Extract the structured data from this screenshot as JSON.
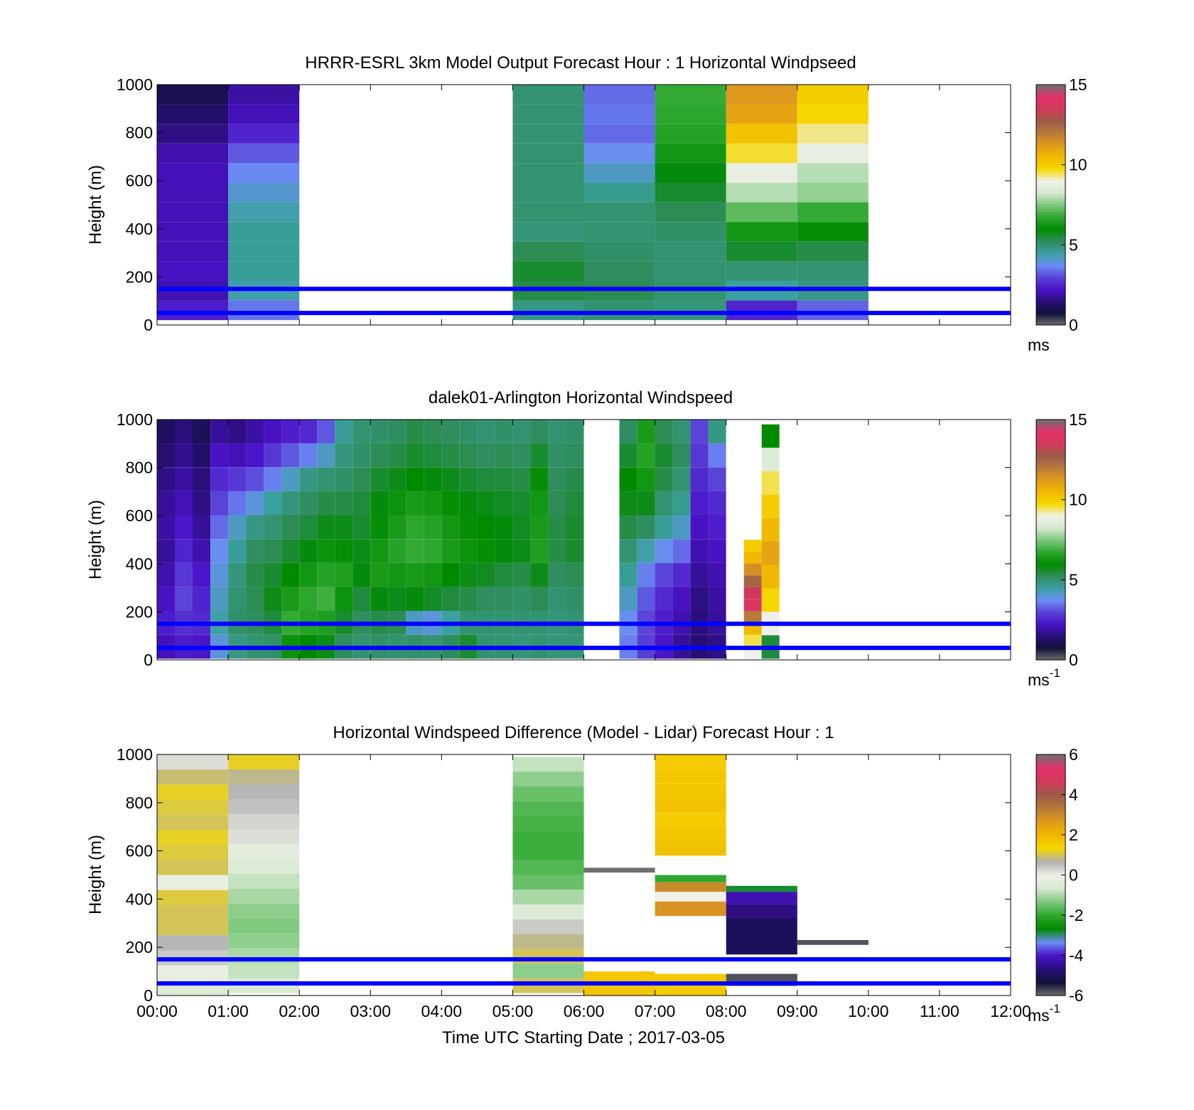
{
  "xaxis": {
    "label": "Time UTC  Starting Date ; 2017-03-05",
    "ticks": [
      "00:00",
      "01:00",
      "02:00",
      "03:00",
      "04:00",
      "05:00",
      "06:00",
      "07:00",
      "08:00",
      "09:00",
      "10:00",
      "11:00",
      "12:00"
    ]
  },
  "colors": {
    "overlay_lines": "#0000ff",
    "speed_scale": [
      "#6f6f6f",
      "#10103a",
      "#2a0f7a",
      "#4a12c8",
      "#5a44d8",
      "#6b8ef5",
      "#3aa0a0",
      "#2f8c5a",
      "#008a00",
      "#2fa82f",
      "#7cc87c",
      "#d5e8d0",
      "#f0f0e8",
      "#f5d800",
      "#f1b800",
      "#e09a1c",
      "#b87a3a",
      "#9c5a48",
      "#d03a5a",
      "#e2306a",
      "#6f6f6f"
    ],
    "diff_scale": [
      "#6f6f6f",
      "#10103a",
      "#2a0f7a",
      "#4a12c8",
      "#6b8ef5",
      "#008a00",
      "#2fa82f",
      "#7cc87c",
      "#d5e8d0",
      "#f0f0e8",
      "#b0b0b0",
      "#f5d800",
      "#f1b800",
      "#e09a1c",
      "#b87a3a",
      "#9c5a48",
      "#d03a5a",
      "#e2306a",
      "#6f6f6f"
    ]
  },
  "chart_data": [
    {
      "type": "heatmap",
      "title": "HRRR-ESRL 3km Model Output   Forecast Hour : 1 Horizontal Windpseed",
      "ylabel": "Height (m)",
      "yticks": [
        "0",
        "200",
        "400",
        "600",
        "800",
        "1000"
      ],
      "ylim": [
        0,
        1000
      ],
      "xlim": [
        0,
        12
      ],
      "colorbar": {
        "ticks": [
          "0",
          "5",
          "10",
          "15"
        ],
        "range": [
          0,
          15
        ],
        "unit": "ms"
      },
      "reference_heights": [
        50,
        150
      ],
      "columns": [
        {
          "x": 0,
          "top": 1000,
          "bottom": 20,
          "values": [
            1.0,
            1.3,
            1.6,
            2.0,
            2.1,
            2.1,
            2.1,
            2.1,
            2.1,
            2.2,
            2.0,
            2.4
          ]
        },
        {
          "x": 1,
          "top": 1000,
          "bottom": 20,
          "values": [
            1.9,
            2.1,
            2.5,
            3.2,
            3.7,
            4.1,
            4.4,
            4.6,
            4.6,
            4.6,
            4.4,
            3.5
          ]
        },
        {
          "x": 5,
          "top": 1000,
          "bottom": 20,
          "values": [
            5.0,
            5.0,
            5.0,
            5.0,
            5.0,
            5.0,
            5.0,
            4.9,
            5.3,
            5.6,
            5.4,
            4.8
          ]
        },
        {
          "x": 6,
          "top": 1000,
          "bottom": 20,
          "values": [
            3.4,
            3.5,
            3.4,
            3.8,
            4.2,
            4.7,
            5.0,
            5.0,
            5.1,
            5.2,
            5.3,
            5.0
          ]
        },
        {
          "x": 7,
          "top": 1000,
          "bottom": 20,
          "values": [
            6.8,
            6.7,
            6.6,
            6.3,
            5.9,
            5.6,
            5.3,
            5.1,
            5.0,
            5.0,
            5.0,
            4.9
          ]
        },
        {
          "x": 8,
          "top": 1000,
          "bottom": 20,
          "values": [
            11.3,
            11.0,
            10.3,
            9.6,
            8.8,
            8.0,
            7.2,
            6.3,
            5.6,
            5.0,
            4.5,
            2.5
          ]
        },
        {
          "x": 9,
          "top": 1000,
          "bottom": 20,
          "values": [
            10.0,
            9.8,
            9.3,
            8.8,
            8.0,
            7.7,
            6.8,
            6.1,
            5.4,
            5.0,
            4.8,
            3.3
          ]
        }
      ]
    },
    {
      "type": "heatmap",
      "title": "dalek01-Arlington  Horizontal Windspeed",
      "ylabel": "Height (m)",
      "yticks": [
        "0",
        "200",
        "400",
        "600",
        "800",
        "1000"
      ],
      "ylim": [
        0,
        1000
      ],
      "xlim": [
        0,
        12
      ],
      "colorbar": {
        "ticks": [
          "0",
          "5",
          "10",
          "15"
        ],
        "range": [
          0,
          15
        ],
        "unit": "ms-1"
      },
      "reference_heights": [
        50,
        150
      ],
      "columns": [
        {
          "x": 0.0,
          "top": 1000,
          "bottom": 5,
          "values": [
            1.2,
            1.4,
            1.6,
            1.8,
            1.9,
            1.8,
            2.0,
            2.2,
            2.4,
            2.1
          ]
        },
        {
          "x": 0.25,
          "top": 1000,
          "bottom": 5,
          "values": [
            1.5,
            1.7,
            1.9,
            2.1,
            2.3,
            2.5,
            2.8,
            3.0,
            2.7,
            2.4
          ]
        },
        {
          "x": 0.5,
          "top": 1000,
          "bottom": 5,
          "values": [
            1.1,
            1.3,
            1.5,
            1.6,
            1.8,
            2.0,
            2.3,
            2.5,
            2.6,
            2.3
          ]
        },
        {
          "x": 0.75,
          "top": 1000,
          "bottom": 5,
          "values": [
            1.8,
            2.2,
            2.6,
            3.0,
            3.4,
            3.8,
            4.0,
            4.2,
            4.4,
            4.0
          ]
        },
        {
          "x": 1.0,
          "top": 1000,
          "bottom": 5,
          "values": [
            1.6,
            2.1,
            2.8,
            3.5,
            4.2,
            4.6,
            4.9,
            5.0,
            5.1,
            4.8
          ]
        },
        {
          "x": 1.25,
          "top": 1000,
          "bottom": 5,
          "values": [
            1.9,
            2.3,
            3.1,
            4.0,
            4.8,
            5.2,
            5.4,
            5.3,
            5.2,
            5.0
          ]
        },
        {
          "x": 1.5,
          "top": 1000,
          "bottom": 5,
          "values": [
            2.2,
            2.8,
            3.6,
            4.5,
            5.0,
            5.3,
            5.6,
            5.8,
            5.5,
            5.1
          ]
        },
        {
          "x": 1.75,
          "top": 1000,
          "bottom": 5,
          "values": [
            2.4,
            3.2,
            4.2,
            4.9,
            5.3,
            5.6,
            6.0,
            6.4,
            6.8,
            6.2
          ]
        },
        {
          "x": 2.0,
          "top": 1000,
          "bottom": 5,
          "values": [
            2.6,
            3.6,
            4.8,
            5.2,
            5.5,
            5.9,
            6.3,
            6.7,
            6.6,
            6.0
          ]
        },
        {
          "x": 2.25,
          "top": 1000,
          "bottom": 5,
          "values": [
            3.2,
            4.2,
            5.0,
            5.4,
            5.8,
            6.2,
            6.6,
            6.9,
            6.5,
            5.8
          ]
        },
        {
          "x": 2.5,
          "top": 1000,
          "bottom": 5,
          "values": [
            4.6,
            4.9,
            5.1,
            5.4,
            5.8,
            6.1,
            6.5,
            6.2,
            5.6,
            5.2
          ]
        },
        {
          "x": 2.75,
          "top": 1000,
          "bottom": 5,
          "values": [
            5.0,
            5.1,
            5.3,
            5.5,
            5.6,
            5.8,
            5.9,
            5.5,
            5.2,
            5.0
          ]
        },
        {
          "x": 3.0,
          "top": 1000,
          "bottom": 5,
          "values": [
            5.1,
            5.3,
            5.6,
            5.9,
            6.1,
            6.3,
            6.4,
            5.9,
            5.4,
            5.1
          ]
        },
        {
          "x": 3.25,
          "top": 1000,
          "bottom": 5,
          "values": [
            5.2,
            5.4,
            5.8,
            6.2,
            6.4,
            6.6,
            6.3,
            5.8,
            5.3,
            5.0
          ]
        },
        {
          "x": 3.5,
          "top": 1000,
          "bottom": 5,
          "values": [
            5.4,
            5.6,
            6.0,
            6.4,
            6.7,
            6.8,
            6.4,
            5.9,
            4.2,
            5.1
          ]
        },
        {
          "x": 3.75,
          "top": 1000,
          "bottom": 5,
          "values": [
            5.3,
            5.5,
            5.9,
            6.3,
            6.6,
            6.7,
            6.3,
            5.7,
            4.0,
            5.0
          ]
        },
        {
          "x": 4.0,
          "top": 1000,
          "bottom": 5,
          "values": [
            5.2,
            5.4,
            5.8,
            6.1,
            6.3,
            6.4,
            6.0,
            5.5,
            4.5,
            5.2
          ]
        },
        {
          "x": 4.25,
          "top": 1000,
          "bottom": 5,
          "values": [
            5.1,
            5.3,
            5.6,
            5.9,
            6.1,
            6.2,
            5.8,
            5.4,
            5.0,
            5.6
          ]
        },
        {
          "x": 4.5,
          "top": 1000,
          "bottom": 5,
          "values": [
            5.0,
            5.2,
            5.5,
            5.8,
            6.0,
            6.1,
            5.7,
            5.2,
            5.0,
            5.0
          ]
        },
        {
          "x": 4.75,
          "top": 1000,
          "bottom": 5,
          "values": [
            5.1,
            5.3,
            5.5,
            5.7,
            5.9,
            5.9,
            5.5,
            5.2,
            5.0,
            5.0
          ]
        },
        {
          "x": 5.0,
          "top": 1000,
          "bottom": 5,
          "values": [
            5.0,
            5.2,
            5.4,
            5.6,
            5.7,
            5.8,
            5.4,
            5.1,
            5.0,
            4.9
          ]
        },
        {
          "x": 5.25,
          "top": 1000,
          "bottom": 5,
          "values": [
            5.2,
            5.6,
            6.1,
            6.3,
            6.4,
            6.5,
            5.8,
            5.3,
            5.0,
            5.0
          ]
        },
        {
          "x": 5.5,
          "top": 1000,
          "bottom": 5,
          "values": [
            5.0,
            5.1,
            5.2,
            5.3,
            5.4,
            5.4,
            5.2,
            5.0,
            4.9,
            4.9
          ]
        },
        {
          "x": 5.75,
          "top": 1000,
          "bottom": 5,
          "values": [
            5.1,
            5.2,
            5.4,
            5.5,
            5.6,
            5.6,
            5.3,
            5.1,
            5.0,
            4.9
          ]
        },
        {
          "x": 6.5,
          "top": 1000,
          "bottom": 5,
          "values": [
            5.2,
            5.6,
            6.0,
            5.8,
            5.4,
            5.0,
            4.6,
            4.2,
            3.8,
            3.6
          ]
        },
        {
          "x": 6.75,
          "top": 1000,
          "bottom": 5,
          "values": [
            6.4,
            6.6,
            6.3,
            5.8,
            5.2,
            4.4,
            3.6,
            3.2,
            3.0,
            2.9
          ]
        },
        {
          "x": 7.0,
          "top": 1000,
          "bottom": 5,
          "values": [
            5.3,
            5.6,
            5.4,
            5.0,
            4.6,
            3.8,
            3.0,
            2.6,
            2.4,
            2.3
          ]
        },
        {
          "x": 7.25,
          "top": 1000,
          "bottom": 5,
          "values": [
            5.0,
            5.2,
            5.0,
            4.7,
            4.2,
            3.4,
            2.6,
            2.2,
            2.0,
            1.8
          ]
        },
        {
          "x": 7.5,
          "top": 1000,
          "bottom": 5,
          "values": [
            3.0,
            2.8,
            2.6,
            2.4,
            2.2,
            2.0,
            1.8,
            1.6,
            1.5,
            1.4
          ]
        },
        {
          "x": 7.75,
          "top": 1000,
          "bottom": 5,
          "values": [
            4.8,
            3.6,
            3.0,
            2.6,
            2.4,
            2.2,
            2.0,
            1.9,
            1.8,
            1.6
          ]
        },
        {
          "x": 8.25,
          "top": 500,
          "bottom": 5,
          "values": [
            10.0,
            10.5,
            11.5,
            12.5,
            13.5,
            14.0,
            12.0,
            10.5,
            9.5,
            9.0
          ]
        },
        {
          "x": 8.5,
          "top": 980,
          "bottom": 5,
          "values": [
            6.0,
            8.5,
            9.5,
            10.0,
            10.5,
            11.0,
            10.5,
            9.8,
            9.0,
            5.5
          ]
        }
      ]
    },
    {
      "type": "heatmap",
      "title": "Horizontal Windspeed Difference (Model - Lidar) Forecast Hour : 1",
      "ylabel": "Height (m)",
      "yticks": [
        "0",
        "200",
        "400",
        "600",
        "800",
        "1000"
      ],
      "ylim": [
        0,
        1000
      ],
      "xlim": [
        0,
        12
      ],
      "colorbar": {
        "ticks": [
          "-6",
          "-4",
          "-2",
          "0",
          "2",
          "4",
          "6"
        ],
        "range": [
          -6,
          6
        ],
        "unit": "ms-1"
      },
      "reference_heights": [
        50,
        150
      ],
      "columns": [
        {
          "x": 0,
          "top": 1000,
          "bottom": 0,
          "values": [
            0.2,
            0.9,
            1.2,
            1.1,
            1.0,
            1.2,
            1.1,
            1.0,
            -0.2,
            1.1,
            1.0,
            1.0,
            0.6,
            0.4,
            -0.2,
            -0.5
          ]
        },
        {
          "x": 1,
          "top": 1000,
          "bottom": 10,
          "values": [
            1.2,
            0.8,
            0.6,
            0.5,
            0.3,
            0.2,
            -0.3,
            -0.5,
            -0.8,
            -1.0,
            -1.2,
            -1.3,
            -1.2,
            -1.0,
            -0.8,
            -0.6
          ]
        },
        {
          "x": 5,
          "top": 990,
          "bottom": 10,
          "values": [
            -0.8,
            -1.2,
            -1.5,
            -1.7,
            -1.8,
            -1.9,
            -1.9,
            -1.7,
            -1.5,
            -1.0,
            -0.5,
            0.4,
            0.8,
            1.0,
            -1.2,
            1.0
          ]
        },
        {
          "x": 7,
          "top": 1000,
          "bottom": 580,
          "values": [
            1.6,
            1.7,
            1.7,
            1.8,
            1.6,
            1.7,
            1.8
          ]
        }
      ],
      "segments": [
        {
          "x0": 6,
          "x1": 7,
          "y0": 510,
          "y1": 530,
          "value": -6.0
        },
        {
          "x0": 6,
          "x1": 7,
          "y0": 0,
          "y1": 100,
          "value": 1.7
        },
        {
          "x0": 7,
          "x1": 8,
          "y0": 470,
          "y1": 500,
          "value": -2.0
        },
        {
          "x0": 7,
          "x1": 8,
          "y0": 430,
          "y1": 470,
          "value": 3.0
        },
        {
          "x0": 7,
          "x1": 8,
          "y0": 390,
          "y1": 430,
          "value": 0.0
        },
        {
          "x0": 7,
          "x1": 8,
          "y0": 330,
          "y1": 390,
          "value": 2.8
        },
        {
          "x0": 7,
          "x1": 8,
          "y0": 0,
          "y1": 90,
          "value": 1.6
        },
        {
          "x0": 8,
          "x1": 9,
          "y0": 430,
          "y1": 455,
          "value": -2.8
        },
        {
          "x0": 8,
          "x1": 9,
          "y0": 380,
          "y1": 430,
          "value": -4.2
        },
        {
          "x0": 8,
          "x1": 9,
          "y0": 320,
          "y1": 380,
          "value": -4.6
        },
        {
          "x0": 8,
          "x1": 9,
          "y0": 170,
          "y1": 320,
          "value": -5.0
        },
        {
          "x0": 8,
          "x1": 9,
          "y0": 40,
          "y1": 90,
          "value": -5.8
        },
        {
          "x0": 9,
          "x1": 10,
          "y0": 210,
          "y1": 230,
          "value": -5.8
        }
      ]
    }
  ]
}
